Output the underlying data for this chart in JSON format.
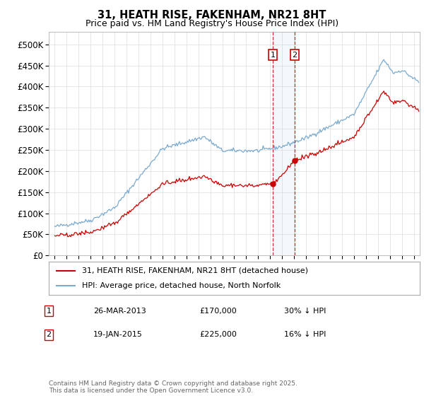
{
  "title": "31, HEATH RISE, FAKENHAM, NR21 8HT",
  "subtitle": "Price paid vs. HM Land Registry's House Price Index (HPI)",
  "line1_label": "31, HEATH RISE, FAKENHAM, NR21 8HT (detached house)",
  "line2_label": "HPI: Average price, detached house, North Norfolk",
  "line1_color": "#cc0000",
  "line2_color": "#7aaad0",
  "transaction1_date": "26-MAR-2013",
  "transaction1_price": 170000,
  "transaction1_pct": "30% ↓ HPI",
  "transaction2_date": "19-JAN-2015",
  "transaction2_price": 225000,
  "transaction2_pct": "16% ↓ HPI",
  "ylim": [
    0,
    530000
  ],
  "yticks": [
    0,
    50000,
    100000,
    150000,
    200000,
    250000,
    300000,
    350000,
    400000,
    450000,
    500000
  ],
  "ytick_labels": [
    "£0",
    "£50K",
    "£100K",
    "£150K",
    "£200K",
    "£250K",
    "£300K",
    "£350K",
    "£400K",
    "£450K",
    "£500K"
  ],
  "background_color": "#ffffff",
  "grid_color": "#dddddd",
  "footnote": "Contains HM Land Registry data © Crown copyright and database right 2025.\nThis data is licensed under the Open Government Licence v3.0.",
  "transaction1_x": 2013.23,
  "transaction2_x": 2015.05,
  "xlim_left": 1994.5,
  "xlim_right": 2025.5
}
